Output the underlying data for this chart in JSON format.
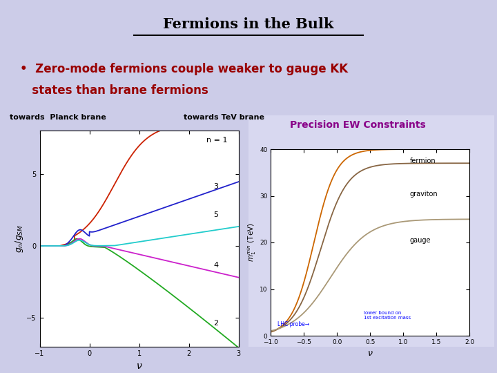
{
  "title": "Fermions in the Bulk",
  "background_color": "#cccce8",
  "bullet_line1": "•  Zero-mode fermions couple weaker to gauge KK",
  "bullet_line2": "   states than brane fermions",
  "bullet_color": "#990000",
  "title_color": "#000000",
  "label_planck": "towards  Planck brane",
  "label_tev": "towards TeV brane",
  "label_precision": "Precision EW Constraints",
  "left_xlim": [
    -1,
    3
  ],
  "left_ylim": [
    -7,
    8
  ],
  "left_yticks": [
    -5,
    0,
    5
  ],
  "left_xticks": [
    -1,
    0,
    1,
    2,
    3
  ],
  "right_xlim": [
    -1.0,
    2.0
  ],
  "right_ylim": [
    0,
    40
  ],
  "right_yticks": [
    0,
    10,
    20,
    30,
    40
  ],
  "right_xticks": [
    -1.0,
    -0.5,
    0.0,
    0.5,
    1.0,
    1.5,
    2.0
  ],
  "curve_colors": {
    "n1": "#cc2200",
    "n2": "#22aa22",
    "n3": "#2222cc",
    "n4": "#cc22cc",
    "n5": "#22cccc"
  },
  "right_colors": {
    "fermion": "#cc6600",
    "graviton": "#886644",
    "gauge": "#aa9977"
  }
}
